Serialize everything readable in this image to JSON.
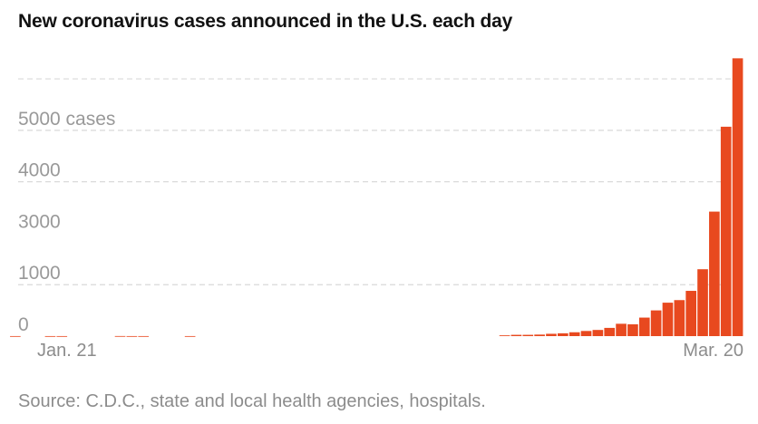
{
  "chart_data": {
    "type": "bar",
    "title": "New coronavirus cases announced in the U.S. each day",
    "source": "Source: C.D.C., state and local health agencies, hospitals.",
    "xlabel": "",
    "ylabel": "",
    "x_start": "Jan. 21",
    "x_end": "Mar. 20",
    "x_tick_labels": [
      "Jan. 21",
      "Mar. 20"
    ],
    "y_tick_labels": [
      "0",
      "1000",
      "3000",
      "4000",
      "5000 cases"
    ],
    "y_ticks": [
      1000,
      3000,
      4000,
      5000
    ],
    "ylim": [
      0,
      5600
    ],
    "grid": "horizontal dashed",
    "bar_color": "#e8491f",
    "values": [
      1,
      0,
      0,
      1,
      1,
      0,
      0,
      0,
      0,
      2,
      1,
      1,
      0,
      0,
      0,
      1,
      0,
      0,
      0,
      0,
      0,
      0,
      0,
      0,
      0,
      0,
      0,
      0,
      0,
      0,
      0,
      0,
      0,
      0,
      0,
      0,
      0,
      0,
      0,
      0,
      0,
      0,
      15,
      25,
      25,
      30,
      45,
      55,
      75,
      100,
      120,
      160,
      240,
      230,
      360,
      500,
      650,
      700,
      880,
      1300,
      2420,
      4070,
      5400
    ],
    "y_tick_pos": [
      0,
      1000,
      2000,
      3000,
      4000,
      5000
    ]
  }
}
